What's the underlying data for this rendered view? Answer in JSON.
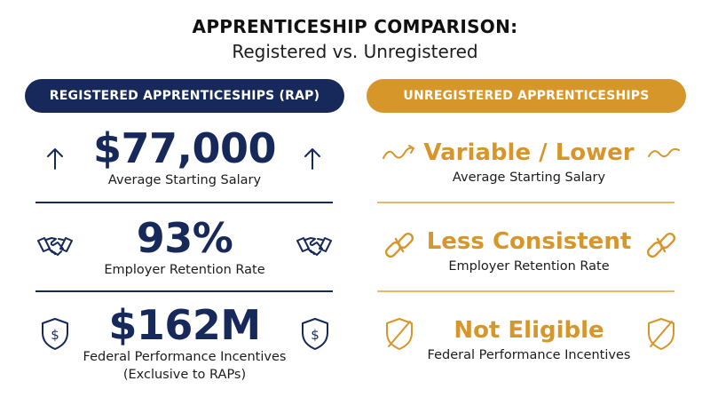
{
  "header": {
    "title": "APPRENTICESHIP COMPARISON:",
    "subtitle": "Registered vs. Unregistered"
  },
  "colors": {
    "navy": "#16295a",
    "gold": "#d7962a"
  },
  "left": {
    "heading": "REGISTERED APPRENTICESHIPS (RAP)",
    "items": [
      {
        "value": "$77,000",
        "label": "Average Starting Salary",
        "icon": "arrow-up-icon"
      },
      {
        "value": "93%",
        "label": "Employer Retention Rate",
        "icon": "handshake-icon"
      },
      {
        "value": "$162M",
        "label": "Federal Performance Incentives",
        "label2": "(Exclusive to RAPs)",
        "icon": "shield-dollar-icon"
      }
    ]
  },
  "right": {
    "heading": "UNREGISTERED APPRENTICESHIPS",
    "items": [
      {
        "value": "Variable / Lower",
        "label": "Average Starting Salary",
        "icon": "wavy-trend-icon"
      },
      {
        "value": "Less Consistent",
        "label": "Employer Retention Rate",
        "icon": "broken-link-icon"
      },
      {
        "value": "Not Eligible",
        "label": "Federal Performance Incentives",
        "icon": "shield-slash-icon"
      }
    ]
  }
}
